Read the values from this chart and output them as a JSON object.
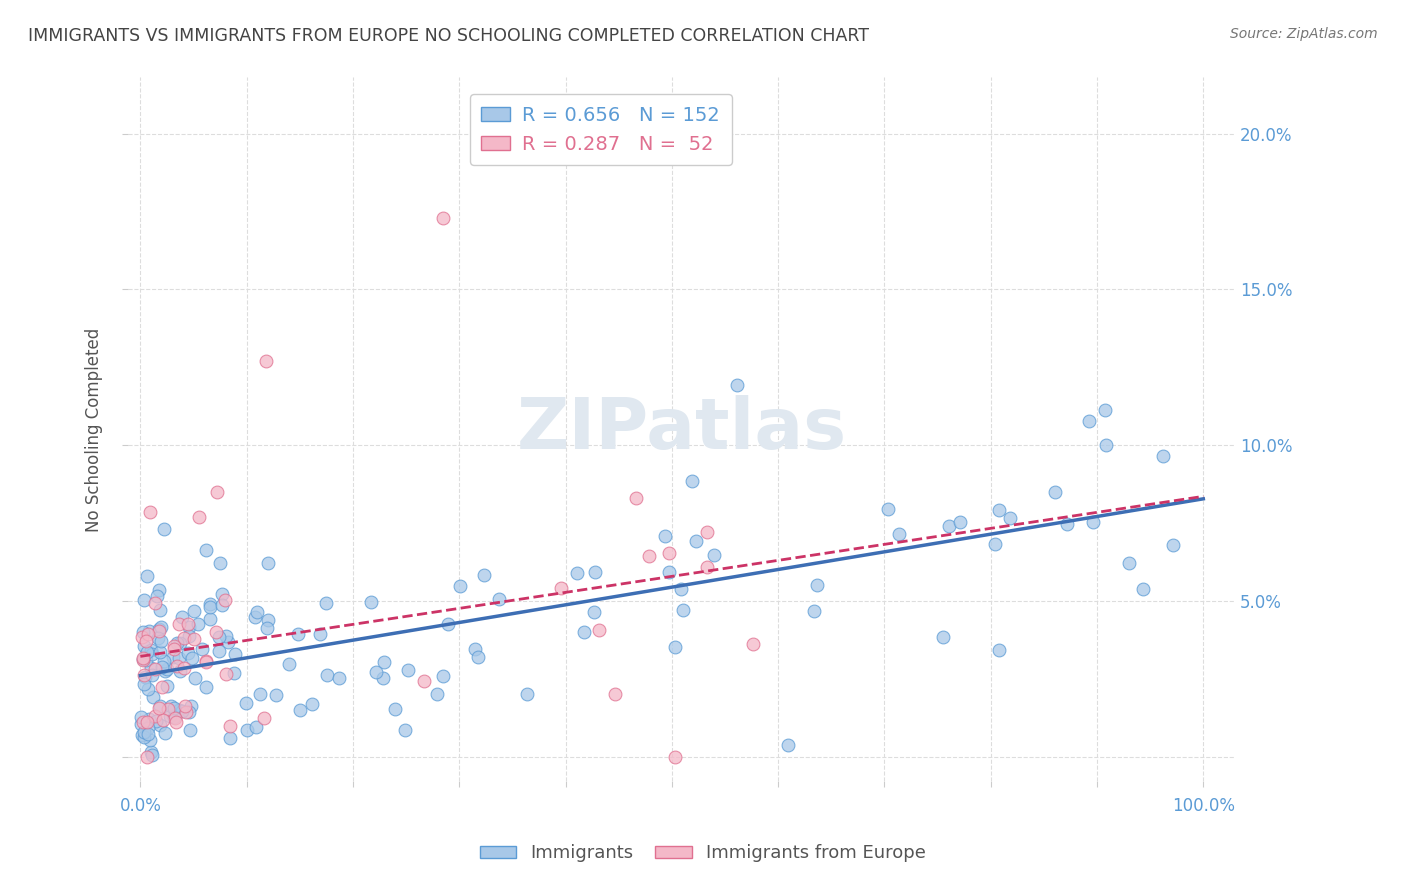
{
  "title": "IMMIGRANTS VS IMMIGRANTS FROM EUROPE NO SCHOOLING COMPLETED CORRELATION CHART",
  "source": "Source: ZipAtlas.com",
  "ylabel": "No Schooling Completed",
  "blue_R": 0.656,
  "blue_N": 152,
  "pink_R": 0.287,
  "pink_N": 52,
  "blue_color": "#a8c8e8",
  "pink_color": "#f4b8c8",
  "blue_edge_color": "#5b9bd5",
  "pink_edge_color": "#e07090",
  "blue_line_color": "#3d6eb4",
  "pink_line_color": "#cc3366",
  "title_color": "#444444",
  "axis_label_color": "#5b9bd5",
  "watermark_color": "#e0e8f0",
  "legend_text_blue": "#5b9bd5",
  "legend_text_pink": "#e07090"
}
